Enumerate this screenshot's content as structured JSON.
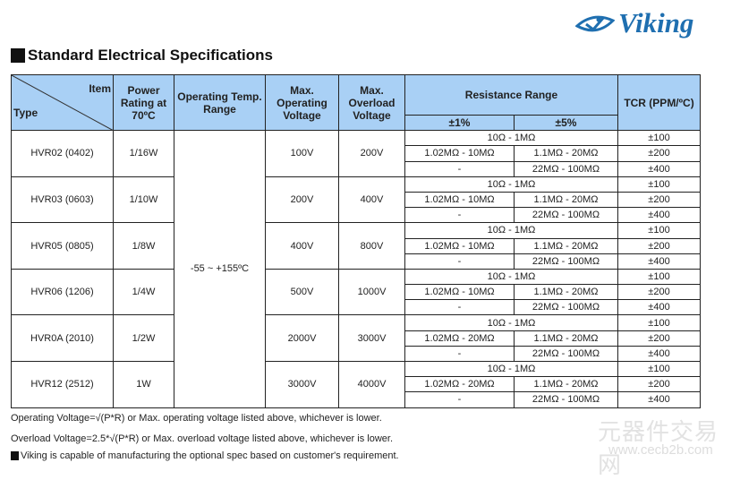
{
  "logo": {
    "text": "Viking",
    "color": "#1f6fb0"
  },
  "title": "Standard Electrical Specifications",
  "header": {
    "item": "Item",
    "type": "Type",
    "power": "Power Rating at 70ºC",
    "temp": "Operating Temp. Range",
    "max_op": "Max. Operating Voltage",
    "max_ov": "Max. Overload Voltage",
    "res": "Resistance Range",
    "tol1": "±1%",
    "tol5": "±5%",
    "tcr": "TCR (PPM/ºC)"
  },
  "temp_range": "-55 ~ +155ºC",
  "rows": [
    {
      "type": "HVR02 (0402)",
      "power": "1/16W",
      "op": "100V",
      "ov": "200V",
      "r1": "10Ω - 1MΩ",
      "r2a": "1.02MΩ - 10MΩ",
      "r2b": "1.1MΩ - 20MΩ",
      "r3a": "-",
      "r3b": "22MΩ - 100MΩ",
      "t1": "±100",
      "t2": "±200",
      "t3": "±400"
    },
    {
      "type": "HVR03 (0603)",
      "power": "1/10W",
      "op": "200V",
      "ov": "400V",
      "r1": "10Ω - 1MΩ",
      "r2a": "1.02MΩ - 10MΩ",
      "r2b": "1.1MΩ - 20MΩ",
      "r3a": "-",
      "r3b": "22MΩ - 100MΩ",
      "t1": "±100",
      "t2": "±200",
      "t3": "±400"
    },
    {
      "type": "HVR05 (0805)",
      "power": "1/8W",
      "op": "400V",
      "ov": "800V",
      "r1": "10Ω - 1MΩ",
      "r2a": "1.02MΩ - 10MΩ",
      "r2b": "1.1MΩ - 20MΩ",
      "r3a": "-",
      "r3b": "22MΩ - 100MΩ",
      "t1": "±100",
      "t2": "±200",
      "t3": "±400"
    },
    {
      "type": "HVR06 (1206)",
      "power": "1/4W",
      "op": "500V",
      "ov": "1000V",
      "r1": "10Ω - 1MΩ",
      "r2a": "1.02MΩ - 10MΩ",
      "r2b": "1.1MΩ - 20MΩ",
      "r3a": "-",
      "r3b": "22MΩ - 100MΩ",
      "t1": "±100",
      "t2": "±200",
      "t3": "±400"
    },
    {
      "type": "HVR0A (2010)",
      "power": "1/2W",
      "op": "2000V",
      "ov": "3000V",
      "r1": "10Ω - 1MΩ",
      "r2a": "1.02MΩ - 20MΩ",
      "r2b": "1.1MΩ - 20MΩ",
      "r3a": "-",
      "r3b": "22MΩ - 100MΩ",
      "t1": "±100",
      "t2": "±200",
      "t3": "±400"
    },
    {
      "type": "HVR12 (2512)",
      "power": "1W",
      "op": "3000V",
      "ov": "4000V",
      "r1": "10Ω - 1MΩ",
      "r2a": "1.02MΩ - 20MΩ",
      "r2b": "1.1MΩ - 20MΩ",
      "r3a": "-",
      "r3b": "22MΩ - 100MΩ",
      "t1": "±100",
      "t2": "±200",
      "t3": "±400"
    }
  ],
  "notes": [
    "Operating Voltage=√(P*R) or Max. operating voltage listed above, whichever is lower.",
    "Overload Voltage=2.5*√(P*R) or Max. overload voltage listed above, whichever is lower.",
    "Viking is capable of manufacturing the optional spec based on customer's requirement."
  ],
  "watermark": {
    "line1": "元器件交易网",
    "line2": "www.cecb2b.com"
  }
}
